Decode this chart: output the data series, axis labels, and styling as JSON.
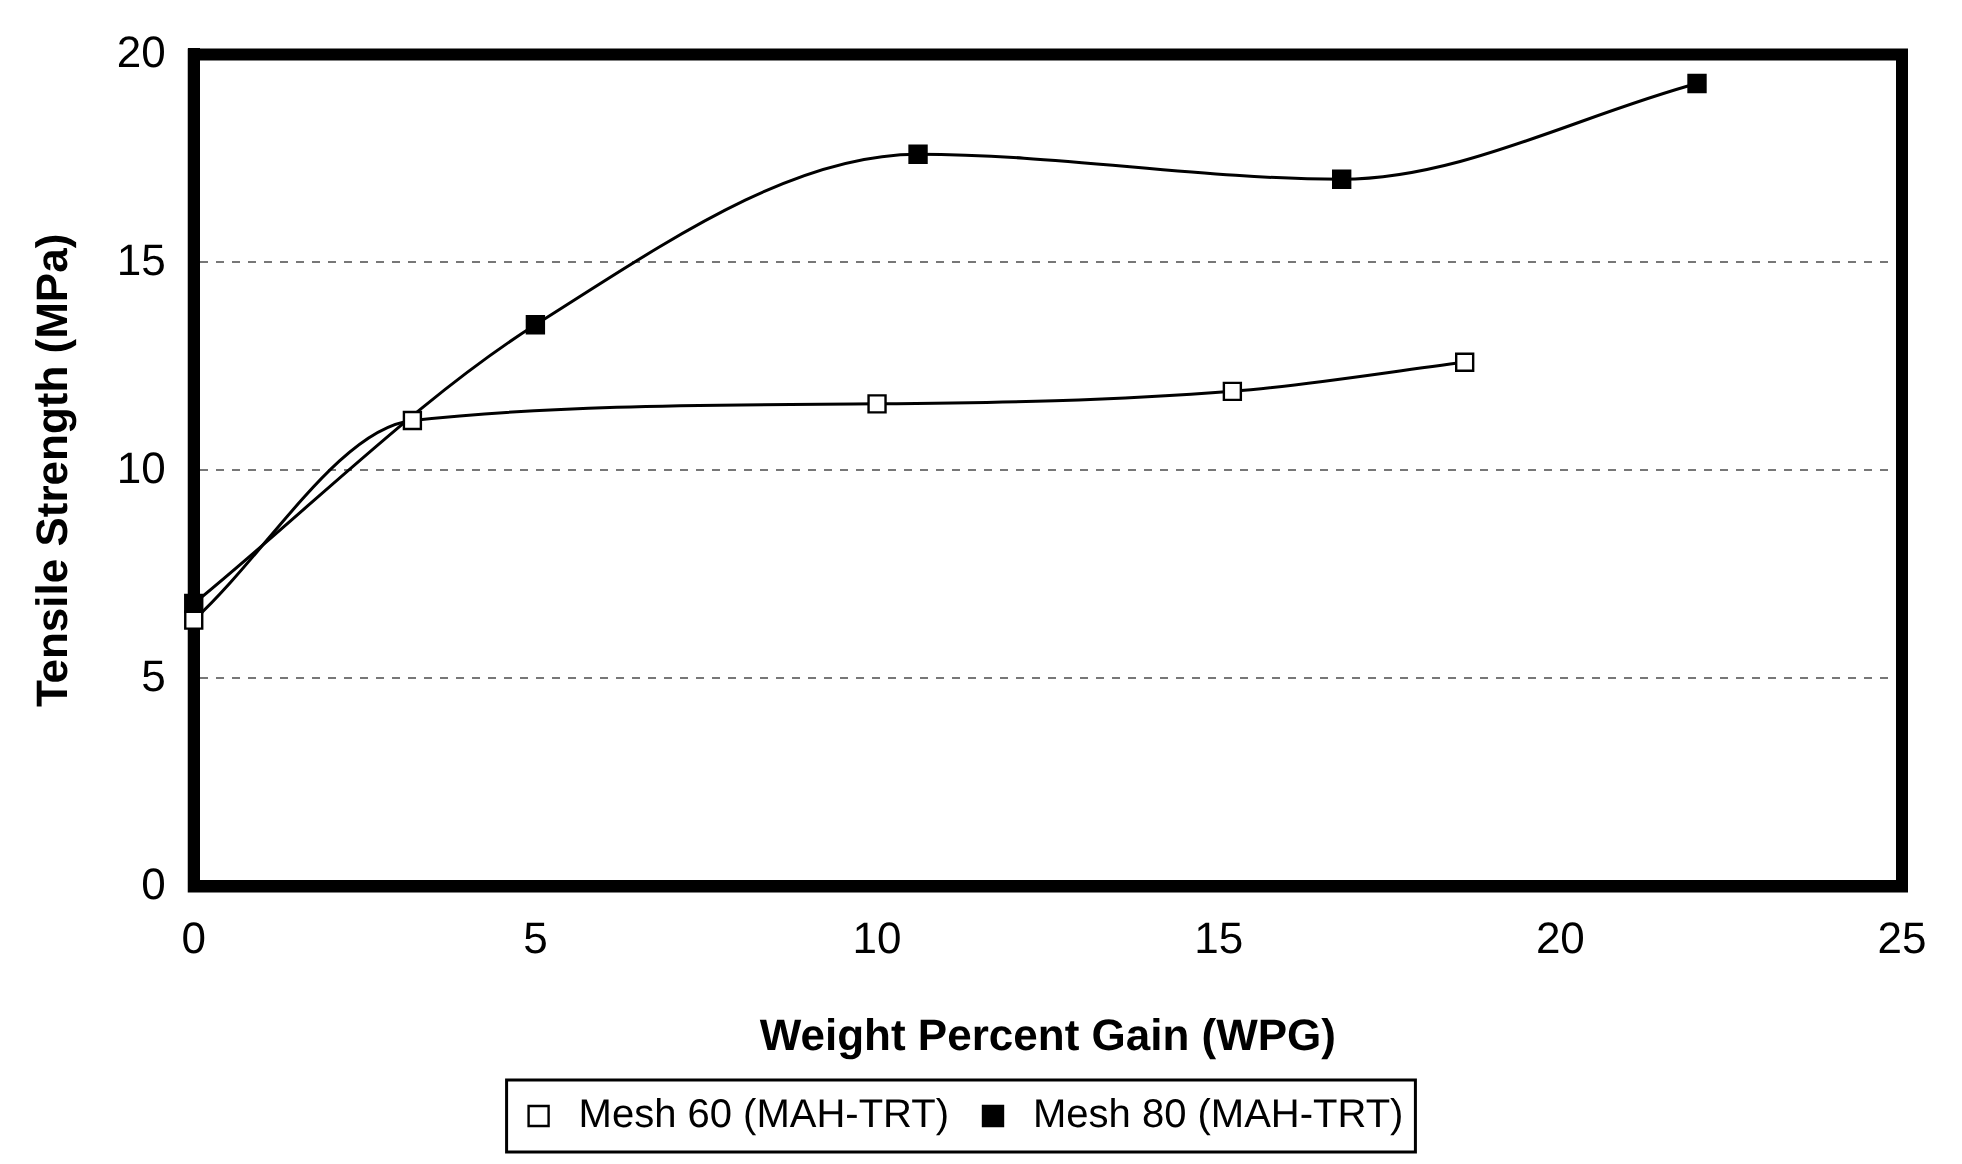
{
  "chart_data": {
    "type": "line",
    "xlabel": "Weight Percent Gain (WPG)",
    "ylabel": "Tensile Strength (MPa)",
    "series": [
      {
        "name": "Mesh 60 (MAH-TRT)",
        "color": "#000000",
        "x": [
          0,
          3.2,
          10.0,
          15.2,
          18.6
        ],
        "values": [
          6.4,
          11.2,
          11.6,
          11.9,
          12.6
        ]
      },
      {
        "name": "Mesh 80 (MAH-TRT)",
        "color": "#000000",
        "x": [
          0,
          5.0,
          10.6,
          16.8,
          22.0
        ],
        "values": [
          6.8,
          13.5,
          17.6,
          17.0,
          19.3
        ]
      }
    ],
    "xlim": [
      0,
      25
    ],
    "xticks": [
      0,
      5,
      10,
      15,
      20,
      25
    ],
    "ylim": [
      0,
      20
    ],
    "yticks": [
      0,
      5,
      10,
      15,
      20
    ],
    "grid": "y",
    "legend": "bottom",
    "marker": "square",
    "line_style": "solid"
  }
}
